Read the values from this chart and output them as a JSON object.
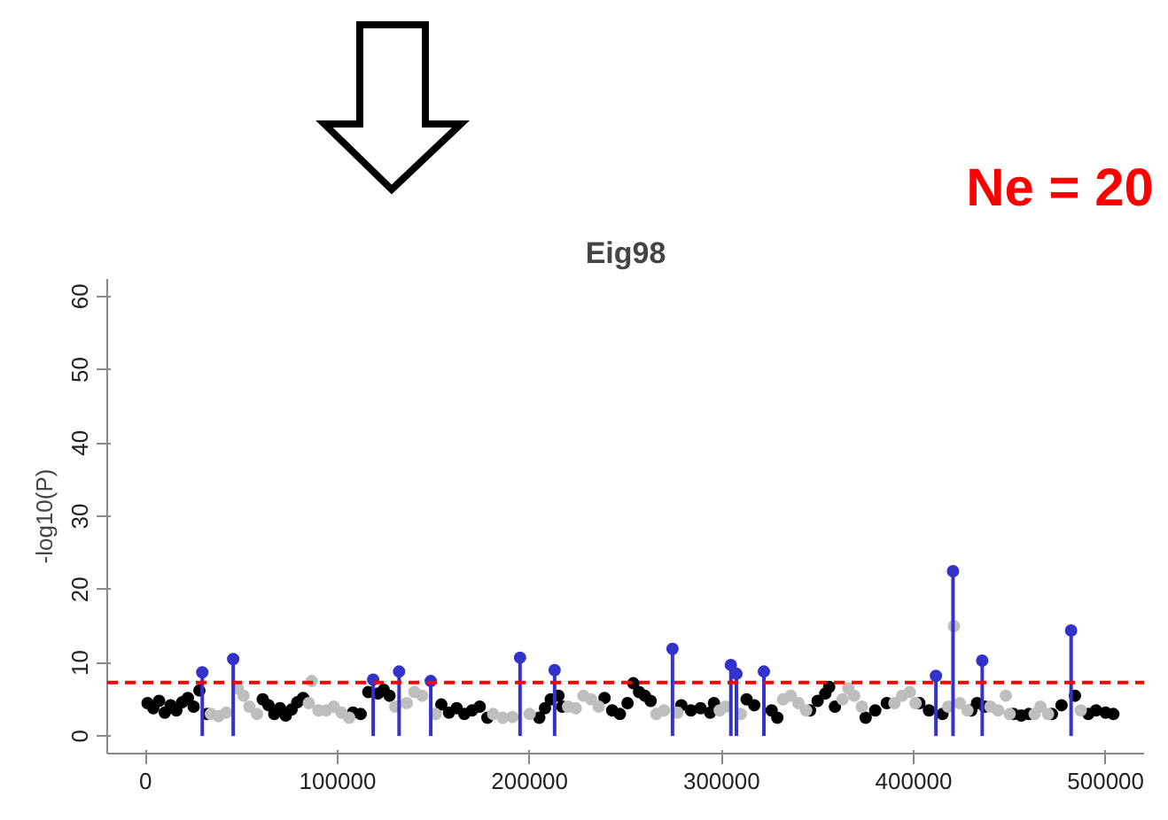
{
  "chart_data": {
    "type": "scatter",
    "title": "Eig98",
    "ylabel": "-log10(P)",
    "annotations": [
      "Ne = 20"
    ],
    "xlim": [
      -20000,
      520000
    ],
    "xticks": [
      0,
      100000,
      200000,
      300000,
      400000,
      500000
    ],
    "ylim": [
      -2.4,
      62.4
    ],
    "yticks": [
      0,
      10,
      20,
      30,
      40,
      50,
      60
    ],
    "grid": false,
    "marker": "circle",
    "ref_lines": [
      {
        "axis": "y",
        "value": 7.3,
        "color": "#ff0000",
        "line_style": "dashed"
      }
    ],
    "series": [
      {
        "color": "#000000",
        "x": [
          1000,
          4000,
          7000,
          10000,
          13000,
          16000,
          19000,
          22000,
          25000,
          28000,
          32000,
          61000,
          64000,
          67000,
          70000,
          73000,
          76000,
          79000,
          82000,
          108000,
          112000,
          116000,
          121000,
          124000,
          127000,
          154000,
          158000,
          162000,
          166000,
          170000,
          174000,
          178000,
          205000,
          208000,
          211000,
          215000,
          217000,
          239000,
          243000,
          247000,
          251000,
          254000,
          257000,
          260000,
          263000,
          279000,
          284000,
          289000,
          294000,
          296000,
          313000,
          317000,
          326000,
          329000,
          346000,
          350000,
          354000,
          356000,
          359000,
          375000,
          380000,
          386000,
          403000,
          408000,
          415000,
          430000,
          433000,
          437000,
          452000,
          456000,
          460000,
          472000,
          477000,
          484000,
          491000,
          495000,
          500000,
          504000
        ],
        "values": [
          4.5,
          3.8,
          4.8,
          3.2,
          4.2,
          3.5,
          4.6,
          5.2,
          4.0,
          6.2,
          3.0,
          5.0,
          4.2,
          3.0,
          3.8,
          2.8,
          3.6,
          4.6,
          5.2,
          3.2,
          3.0,
          6.0,
          5.8,
          6.3,
          5.5,
          4.3,
          3.2,
          3.8,
          3.0,
          3.5,
          4.0,
          2.5,
          2.5,
          3.8,
          5.0,
          5.5,
          4.0,
          5.2,
          3.5,
          3.0,
          4.5,
          7.2,
          6.0,
          5.5,
          4.8,
          4.2,
          3.5,
          3.8,
          3.2,
          4.5,
          5.0,
          4.2,
          3.5,
          2.5,
          3.5,
          4.8,
          5.8,
          6.7,
          4.0,
          2.5,
          3.5,
          4.5,
          4.5,
          3.5,
          3.0,
          3.5,
          4.5,
          4.0,
          3.0,
          2.8,
          3.0,
          3.0,
          4.2,
          5.5,
          3.0,
          3.5,
          3.2,
          3.0
        ]
      },
      {
        "color": "#bebebe",
        "x": [
          34000,
          38000,
          42000,
          48000,
          51000,
          54000,
          58000,
          85000,
          86500,
          90000,
          94000,
          98000,
          102000,
          106000,
          130000,
          136000,
          140000,
          144000,
          151000,
          181000,
          186000,
          191000,
          200000,
          220000,
          224000,
          228000,
          232000,
          236000,
          266000,
          270000,
          277000,
          299000,
          302000,
          310000,
          332000,
          336000,
          340000,
          344000,
          363000,
          366000,
          369000,
          373000,
          390000,
          394000,
          398000,
          401000,
          418000,
          421000,
          424000,
          428000,
          440000,
          444000,
          448000,
          450000,
          463000,
          466000,
          470000,
          487000
        ],
        "values": [
          3.0,
          2.7,
          3.2,
          6.5,
          5.5,
          4.0,
          3.0,
          4.5,
          7.5,
          3.5,
          3.5,
          4.0,
          3.2,
          2.5,
          4.0,
          4.5,
          6.0,
          5.5,
          3.0,
          3.0,
          2.5,
          2.6,
          3.0,
          4.0,
          3.8,
          5.5,
          5.0,
          4.0,
          3.0,
          3.5,
          3.2,
          3.5,
          4.0,
          3.0,
          5.0,
          5.5,
          4.5,
          3.5,
          5.0,
          6.5,
          5.5,
          4.0,
          4.5,
          5.5,
          6.0,
          4.5,
          4.0,
          15.0,
          4.5,
          3.5,
          4.0,
          3.5,
          5.5,
          3.0,
          3.0,
          4.0,
          3.0,
          3.5
        ]
      },
      {
        "type": "lollipop",
        "color": "#3333cc",
        "x": [
          29500,
          45600,
          118500,
          132000,
          148500,
          195000,
          213000,
          274400,
          304800,
          307700,
          322000,
          411600,
          420500,
          435700,
          482000
        ],
        "values": [
          8.7,
          10.5,
          7.7,
          8.8,
          7.5,
          10.7,
          9.0,
          11.9,
          9.7,
          8.5,
          8.8,
          8.2,
          22.5,
          10.3,
          14.4
        ]
      }
    ]
  }
}
